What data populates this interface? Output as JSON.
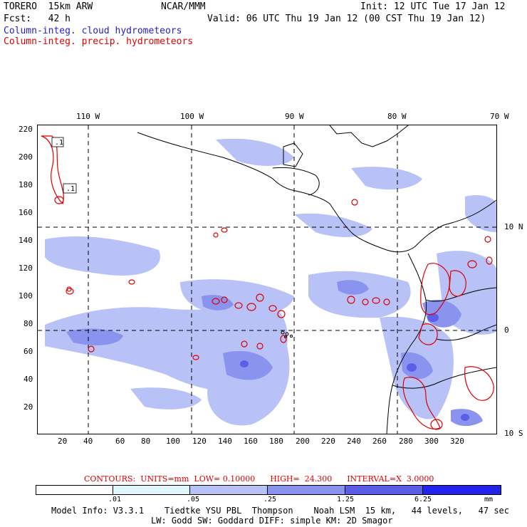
{
  "header": {
    "model": "TORERO  15km ARW",
    "center": "NCAR/MMM",
    "init": "Init: 12 UTC Tue 17 Jan 12",
    "fcst": "Fcst:   42 h",
    "valid": "Valid: 06 UTC Thu 19 Jan 12 (00 CST Thu 19 Jan 12)",
    "field_cloud": "Column-integ. cloud hydrometeors",
    "field_precip": "Column-integ. precip. hydrometeors"
  },
  "map": {
    "lon_labels": [
      "110 W",
      "100 W",
      "90 W",
      "80 W",
      "70 W"
    ],
    "lat_labels": [
      "10 N",
      "0",
      "10 S"
    ],
    "y_ticks": [
      "220",
      "200",
      "180",
      "160",
      "140",
      "120",
      "100",
      "80",
      "60",
      "40",
      "20"
    ],
    "x_ticks": [
      "20",
      "40",
      "60",
      "80",
      "100",
      "120",
      "140",
      "160",
      "180",
      "200",
      "220",
      "240",
      "260",
      "280",
      "300",
      "320"
    ],
    "contour_labels": [
      ".1",
      ".1"
    ]
  },
  "contours_note": "CONTOURS:  UNITS=mm  LOW= 0.10000      HIGH=  24.300      INTERVAL=X  3.0000",
  "colorbar": {
    "labels": [
      ".01",
      ".05",
      ".25",
      "1.25",
      "6.25"
    ],
    "units": "mm",
    "colors": [
      "#ffffff",
      "#dff7fb",
      "#b9c2f6",
      "#8a93ee",
      "#5a5ee8",
      "#2323ee"
    ]
  },
  "footer": {
    "line1": "Model Info: V3.3.1    Tiedtke YSU PBL  Thompson    Noah LSM  15 km,   44 levels,   47 sec",
    "line2": "LW: Godd SW: Goddard DIFF: simple KM: 2D Smagor"
  }
}
